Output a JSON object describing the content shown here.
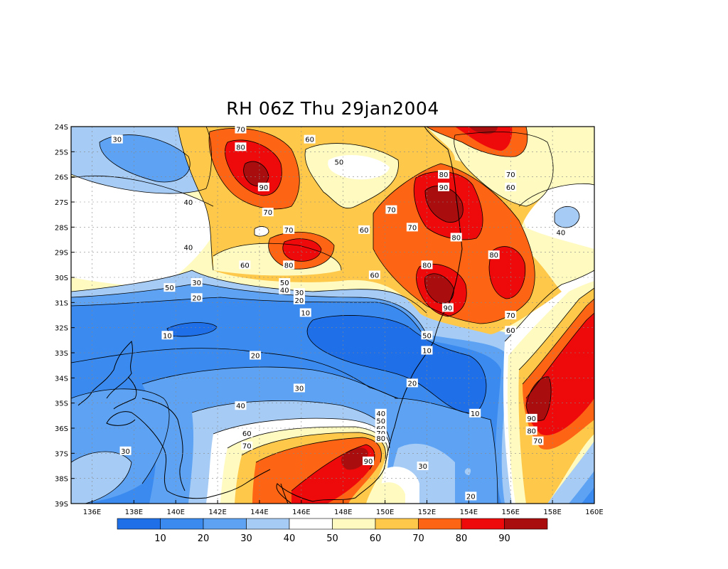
{
  "title": "RH 06Z Thu 29jan2004",
  "map": {
    "lon_range": [
      135,
      160
    ],
    "lat_range": [
      -39,
      -24
    ],
    "lon_ticks": [
      "136E",
      "138E",
      "140E",
      "142E",
      "144E",
      "146E",
      "148E",
      "150E",
      "152E",
      "154E",
      "156E",
      "158E",
      "160E"
    ],
    "lat_ticks": [
      "24S",
      "25S",
      "26S",
      "27S",
      "28S",
      "29S",
      "30S",
      "31S",
      "32S",
      "33S",
      "34S",
      "35S",
      "36S",
      "37S",
      "38S",
      "39S"
    ],
    "grid": true,
    "colors": {
      "c0": "#1f6fe8",
      "c10": "#3a8af0",
      "c20": "#5ea3f3",
      "c30": "#a6ccf6",
      "c40": "#ffffff",
      "c50": "#fffabf",
      "c60": "#fec84a",
      "c70": "#fd6413",
      "c80": "#ee0a0a",
      "c90": "#a90d0d"
    }
  },
  "contour_labels": [
    {
      "text": "70",
      "lon": 143.1,
      "lat": -24.1
    },
    {
      "text": "80",
      "lon": 143.1,
      "lat": -24.8
    },
    {
      "text": "30",
      "lon": 137.2,
      "lat": -24.5
    },
    {
      "text": "60",
      "lon": 146.4,
      "lat": -24.5
    },
    {
      "text": "50",
      "lon": 147.8,
      "lat": -25.4
    },
    {
      "text": "90",
      "lon": 144.2,
      "lat": -26.4
    },
    {
      "text": "40",
      "lon": 140.6,
      "lat": -27.0
    },
    {
      "text": "70",
      "lon": 144.4,
      "lat": -27.4
    },
    {
      "text": "80",
      "lon": 152.8,
      "lat": -25.9
    },
    {
      "text": "90",
      "lon": 152.8,
      "lat": -26.4
    },
    {
      "text": "70",
      "lon": 156.0,
      "lat": -25.9
    },
    {
      "text": "60",
      "lon": 156.0,
      "lat": -26.4
    },
    {
      "text": "70",
      "lon": 150.3,
      "lat": -27.3
    },
    {
      "text": "70",
      "lon": 151.3,
      "lat": -28.0
    },
    {
      "text": "60",
      "lon": 149.0,
      "lat": -28.1
    },
    {
      "text": "80",
      "lon": 153.4,
      "lat": -28.4
    },
    {
      "text": "40",
      "lon": 158.4,
      "lat": -28.2
    },
    {
      "text": "70",
      "lon": 145.4,
      "lat": -28.1
    },
    {
      "text": "40",
      "lon": 140.6,
      "lat": -28.8
    },
    {
      "text": "80",
      "lon": 155.2,
      "lat": -29.1
    },
    {
      "text": "80",
      "lon": 145.4,
      "lat": -29.5
    },
    {
      "text": "60",
      "lon": 143.3,
      "lat": -29.5
    },
    {
      "text": "80",
      "lon": 152.0,
      "lat": -29.5
    },
    {
      "text": "60",
      "lon": 149.5,
      "lat": -29.9
    },
    {
      "text": "50",
      "lon": 139.7,
      "lat": -30.4
    },
    {
      "text": "30",
      "lon": 141.0,
      "lat": -30.2
    },
    {
      "text": "50",
      "lon": 145.2,
      "lat": -30.2
    },
    {
      "text": "40",
      "lon": 145.2,
      "lat": -30.5
    },
    {
      "text": "30",
      "lon": 145.9,
      "lat": -30.6
    },
    {
      "text": "20",
      "lon": 145.9,
      "lat": -30.9
    },
    {
      "text": "20",
      "lon": 141.0,
      "lat": -30.8
    },
    {
      "text": "10",
      "lon": 146.2,
      "lat": -31.4
    },
    {
      "text": "90",
      "lon": 153.0,
      "lat": -31.2
    },
    {
      "text": "70",
      "lon": 156.0,
      "lat": -31.5
    },
    {
      "text": "60",
      "lon": 156.0,
      "lat": -32.1
    },
    {
      "text": "10",
      "lon": 139.6,
      "lat": -32.3
    },
    {
      "text": "50",
      "lon": 152.0,
      "lat": -32.3
    },
    {
      "text": "10",
      "lon": 152.0,
      "lat": -32.9
    },
    {
      "text": "20",
      "lon": 143.8,
      "lat": -33.1
    },
    {
      "text": "20",
      "lon": 151.3,
      "lat": -34.2
    },
    {
      "text": "30",
      "lon": 145.9,
      "lat": -34.4
    },
    {
      "text": "40",
      "lon": 143.1,
      "lat": -35.1
    },
    {
      "text": "10",
      "lon": 154.3,
      "lat": -35.4
    },
    {
      "text": "90",
      "lon": 157.0,
      "lat": -35.6
    },
    {
      "text": "40",
      "lon": 149.8,
      "lat": -35.4
    },
    {
      "text": "50",
      "lon": 149.8,
      "lat": -35.7
    },
    {
      "text": "60",
      "lon": 149.8,
      "lat": -36.0
    },
    {
      "text": "70",
      "lon": 149.8,
      "lat": -36.2
    },
    {
      "text": "80",
      "lon": 149.8,
      "lat": -36.4
    },
    {
      "text": "80",
      "lon": 157.0,
      "lat": -36.1
    },
    {
      "text": "70",
      "lon": 157.3,
      "lat": -36.5
    },
    {
      "text": "60",
      "lon": 143.4,
      "lat": -36.2
    },
    {
      "text": "70",
      "lon": 143.4,
      "lat": -36.7
    },
    {
      "text": "30",
      "lon": 137.6,
      "lat": -36.9
    },
    {
      "text": "90",
      "lon": 149.2,
      "lat": -37.3
    },
    {
      "text": "30",
      "lon": 151.8,
      "lat": -37.5
    },
    {
      "text": "20",
      "lon": 154.1,
      "lat": -38.7
    }
  ],
  "colorbar": {
    "labels": [
      "10",
      "20",
      "30",
      "40",
      "50",
      "60",
      "70",
      "80",
      "90"
    ]
  }
}
